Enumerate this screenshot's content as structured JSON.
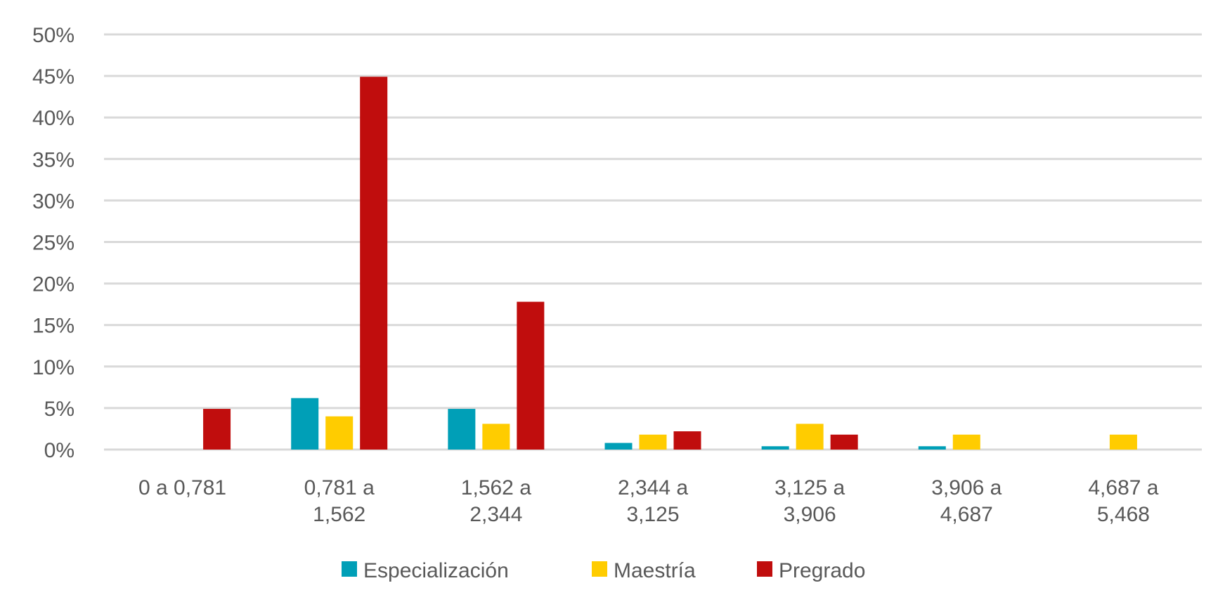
{
  "chart_data": {
    "type": "bar",
    "categories": [
      [
        "0 a 0,781"
      ],
      [
        "0,781 a",
        "1,562"
      ],
      [
        "1,562 a",
        "2,344"
      ],
      [
        "2,344 a",
        "3,125"
      ],
      [
        "3,125 a",
        "3,906"
      ],
      [
        "3,906 a",
        "4,687"
      ],
      [
        "4,687 a",
        "5,468"
      ]
    ],
    "series": [
      {
        "name": "Especialización",
        "color": "#009FB7",
        "values": [
          0,
          6.2,
          4.9,
          0.8,
          0.4,
          0.4,
          0
        ]
      },
      {
        "name": "Maestría",
        "color": "#FFCC00",
        "values": [
          0,
          4.0,
          3.1,
          1.8,
          3.1,
          1.8,
          1.8
        ]
      },
      {
        "name": "Pregrado",
        "color": "#C00D0D",
        "values": [
          4.9,
          44.9,
          17.8,
          2.2,
          1.8,
          0,
          0
        ]
      }
    ],
    "yticks": [
      "0%",
      "5%",
      "10%",
      "15%",
      "20%",
      "25%",
      "30%",
      "35%",
      "40%",
      "45%",
      "50%"
    ],
    "ylim": [
      0,
      50
    ],
    "grid": true,
    "legend": "bottom",
    "title": "",
    "xlabel": "",
    "ylabel": ""
  }
}
